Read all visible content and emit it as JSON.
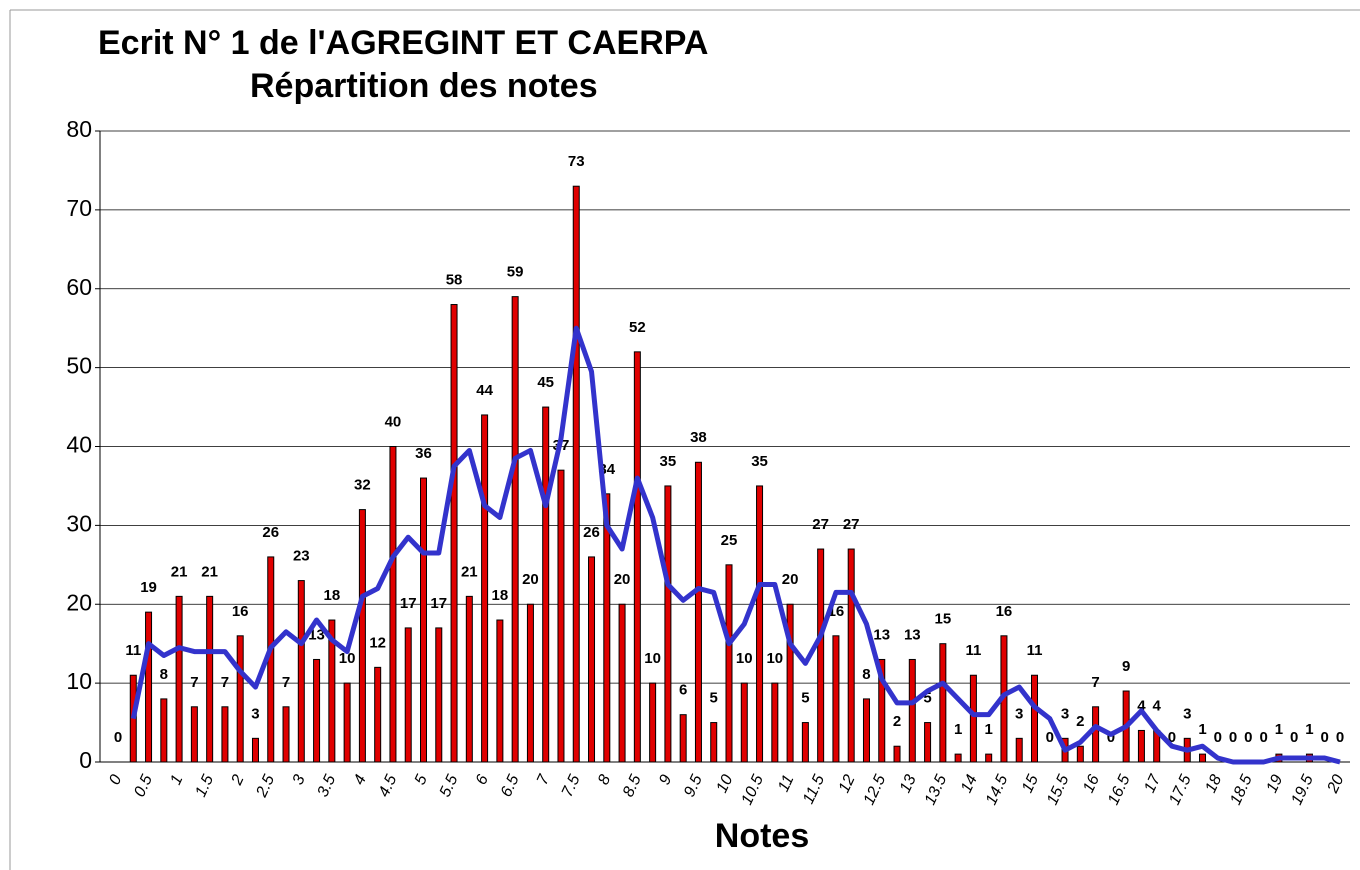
{
  "chart_data": {
    "type": "bar",
    "title": "Ecrit N° 1 de l'AGREGINT ET CAERPA",
    "subtitle": "Répartition des notes",
    "x_label": "Notes",
    "categories": [
      "0",
      null,
      "0.5",
      null,
      "1",
      null,
      "1.5",
      null,
      "2",
      null,
      "2.5",
      null,
      "3",
      null,
      "3.5",
      null,
      "4",
      null,
      "4.5",
      null,
      "5",
      null,
      "5.5",
      null,
      "6",
      null,
      "6.5",
      null,
      "7",
      null,
      "7.5",
      null,
      "8",
      null,
      "8.5",
      null,
      "9",
      null,
      "9.5",
      null,
      "10",
      null,
      "10.5",
      null,
      "11",
      null,
      "11.5",
      null,
      "12",
      null,
      "12.5",
      null,
      "13",
      null,
      "13.5",
      null,
      "14",
      null,
      "14.5",
      null,
      "15",
      null,
      "15.5",
      null,
      "16",
      null,
      "16.5",
      null,
      "17",
      null,
      "17.5",
      null,
      "18",
      null,
      "18.5",
      null,
      "19",
      null,
      "19.5",
      null,
      "20"
    ],
    "series": [
      {
        "type": "bar",
        "color": "#e00000",
        "values": [
          0,
          11,
          19,
          8,
          21,
          7,
          21,
          7,
          16,
          3,
          26,
          7,
          23,
          13,
          18,
          10,
          32,
          12,
          40,
          17,
          36,
          17,
          58,
          21,
          44,
          18,
          59,
          20,
          45,
          37,
          73,
          26,
          34,
          20,
          52,
          10,
          35,
          6,
          38,
          5,
          25,
          10,
          35,
          10,
          20,
          5,
          27,
          16,
          27,
          8,
          13,
          2,
          13,
          5,
          15,
          1,
          11,
          1,
          16,
          3,
          11,
          0,
          3,
          2,
          7,
          0,
          9,
          4,
          4,
          0,
          3,
          1,
          0,
          0,
          0,
          0,
          1,
          0,
          1,
          0,
          0
        ]
      },
      {
        "type": "line",
        "color": "#3333cc",
        "values": [
          null,
          5.5,
          15,
          13.5,
          14.5,
          14,
          14,
          14,
          11.5,
          9.5,
          14.5,
          16.5,
          15,
          18,
          15.5,
          14,
          21,
          22,
          26,
          28.5,
          26.5,
          26.5,
          37.5,
          39.5,
          32.5,
          31,
          38.5,
          39.5,
          32.5,
          41,
          55,
          49.5,
          30,
          27,
          36,
          31,
          22.5,
          20.5,
          22,
          21.5,
          15,
          17.5,
          22.5,
          22.5,
          15,
          12.5,
          16,
          21.5,
          21.5,
          17.5,
          10.5,
          7.5,
          7.5,
          9,
          10,
          8,
          6,
          6,
          8.5,
          9.5,
          7,
          5.5,
          1.5,
          2.5,
          4.5,
          3.5,
          4.5,
          6.5,
          4,
          2,
          1.5,
          2,
          0.5,
          0,
          0,
          0,
          0.5,
          0.5,
          0.5,
          0.5,
          0
        ]
      }
    ],
    "ylim": [
      0,
      80
    ],
    "yticks": [
      0,
      10,
      20,
      30,
      40,
      50,
      60,
      70,
      80
    ],
    "grid": true
  }
}
